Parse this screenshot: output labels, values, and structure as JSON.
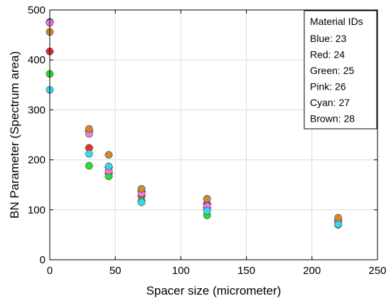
{
  "chart_data": {
    "type": "scatter",
    "title": "",
    "xlabel": "Spacer size (micrometer)",
    "ylabel": "BN Parameter (Spectrum area)",
    "xlim": [
      0,
      250
    ],
    "ylim": [
      0,
      500
    ],
    "xticks": [
      0,
      50,
      100,
      150,
      200,
      250
    ],
    "yticks": [
      0,
      100,
      200,
      300,
      400,
      500
    ],
    "xtick_labels": [
      "0",
      "50",
      "100",
      "150",
      "200",
      "250"
    ],
    "ytick_labels": [
      "0",
      "100",
      "200",
      "300",
      "400",
      "500"
    ],
    "grid": true,
    "legend_placement": "top-right",
    "legend": {
      "title": "Material IDs",
      "entries": [
        "Blue: 23",
        "Red: 24",
        "Green: 25",
        "Pink: 26",
        "Cyan: 27",
        "Brown: 28"
      ]
    },
    "series": [
      {
        "name": "Blue: 23",
        "color": "#4a4adf",
        "x": [
          0,
          30,
          45,
          70,
          120,
          220
        ],
        "y": [
          476,
          258,
          185,
          137,
          112,
          80
        ]
      },
      {
        "name": "Red: 24",
        "color": "#e83030",
        "x": [
          0,
          30,
          45,
          70,
          120,
          220
        ],
        "y": [
          417,
          224,
          173,
          128,
          104,
          76
        ]
      },
      {
        "name": "Green: 25",
        "color": "#2adf2a",
        "x": [
          0,
          30,
          45,
          70,
          120,
          220
        ],
        "y": [
          372,
          188,
          167,
          118,
          89,
          70
        ]
      },
      {
        "name": "Pink: 26",
        "color": "#f07cd8",
        "x": [
          0,
          30,
          45,
          70,
          120,
          220
        ],
        "y": [
          474,
          252,
          178,
          133,
          107,
          79
        ]
      },
      {
        "name": "Cyan: 27",
        "color": "#3ad6e8",
        "x": [
          0,
          30,
          45,
          70,
          120,
          220
        ],
        "y": [
          340,
          212,
          187,
          115,
          98,
          71
        ]
      },
      {
        "name": "Brown: 28",
        "color": "#d08a2a",
        "x": [
          0,
          30,
          45,
          70,
          120,
          220
        ],
        "y": [
          456,
          262,
          210,
          142,
          122,
          84
        ]
      }
    ]
  }
}
